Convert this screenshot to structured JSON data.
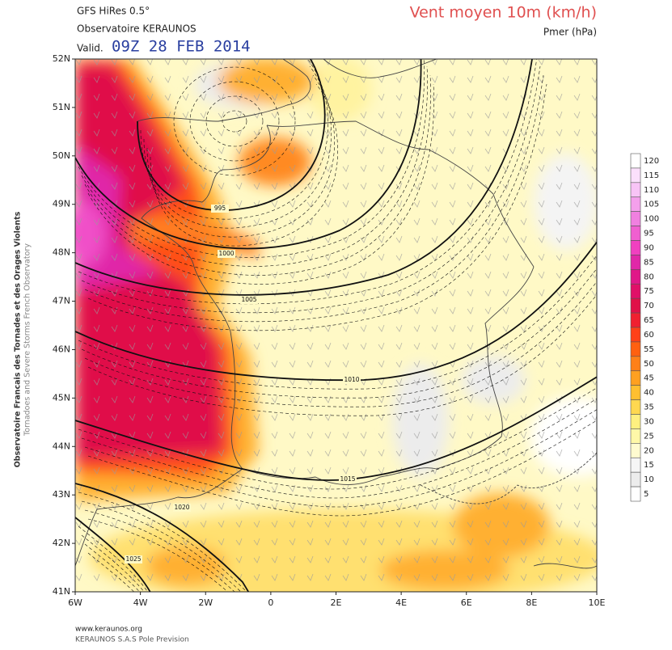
{
  "header": {
    "model": "GFS HiRes 0.5°",
    "source": "Observatoire KERAUNOS",
    "valid_prefix": "Valid.",
    "valid_time": "09Z 28 FEB 2014",
    "title": "Vent moyen 10m (km/h)",
    "subtitle": "Pmer (hPa)"
  },
  "side_text": {
    "line1": "Observatoire Francais des Tornades et des Orages Violents",
    "line2": "Tornadoes and Severe Storms French Observatory"
  },
  "map": {
    "lat_labels": [
      "52N",
      "51N",
      "50N",
      "49N",
      "48N",
      "47N",
      "46N",
      "45N",
      "44N",
      "43N",
      "42N",
      "41N"
    ],
    "lon_labels": [
      "6W",
      "4W",
      "2W",
      "0",
      "2E",
      "4E",
      "6E",
      "8E",
      "10E"
    ],
    "isobar_labels": [
      995,
      1000,
      1005,
      1010,
      1015,
      1020,
      1025
    ]
  },
  "colorbar": {
    "levels": [
      5,
      10,
      15,
      20,
      25,
      30,
      35,
      40,
      45,
      50,
      55,
      60,
      65,
      70,
      75,
      80,
      85,
      90,
      95,
      100,
      105,
      110,
      115,
      120
    ],
    "colors": [
      "#ffffff",
      "#ececec",
      "#f6f6f6",
      "#fffbd0",
      "#fff8a8",
      "#fff080",
      "#ffd850",
      "#ffbf30",
      "#ffa020",
      "#ff8018",
      "#ff6010",
      "#ff4018",
      "#f02030",
      "#e01048",
      "#e01068",
      "#e01888",
      "#e028a8",
      "#f040c0",
      "#f060d0",
      "#f080e0",
      "#f4a0ec",
      "#f8c4f6",
      "#fbe0fc",
      "#ffffff"
    ]
  },
  "footer": {
    "url": "www.keraunos.org",
    "company": "KERAUNOS S.A.S Pole Prevision"
  }
}
